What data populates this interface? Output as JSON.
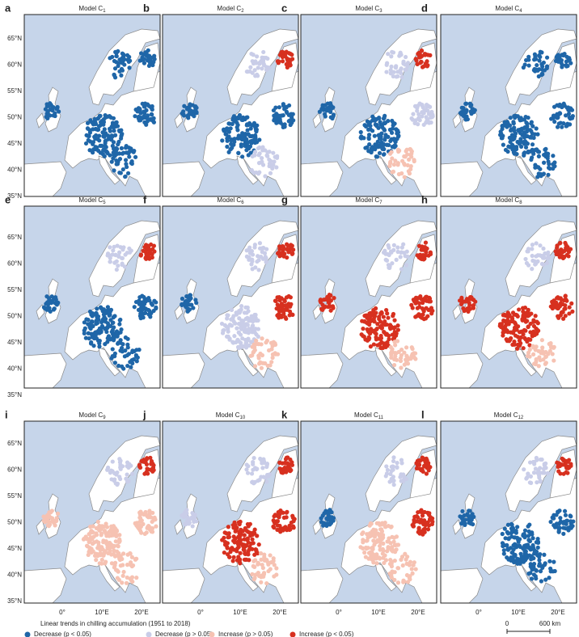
{
  "panels": [
    {
      "letter": "a",
      "title": "Model C",
      "subscript": "1"
    },
    {
      "letter": "b",
      "title": "Model C",
      "subscript": "2"
    },
    {
      "letter": "c",
      "title": "Model C",
      "subscript": "3"
    },
    {
      "letter": "d",
      "title": "Model C",
      "subscript": "4"
    },
    {
      "letter": "e",
      "title": "Model C",
      "subscript": "5"
    },
    {
      "letter": "f",
      "title": "Model C",
      "subscript": "6"
    },
    {
      "letter": "g",
      "title": "Model C",
      "subscript": "7"
    },
    {
      "letter": "h",
      "title": "Model C",
      "subscript": "8"
    },
    {
      "letter": "i",
      "title": "Model C",
      "subscript": "9"
    },
    {
      "letter": "j",
      "title": "Model C",
      "subscript": "10"
    },
    {
      "letter": "k",
      "title": "Model C",
      "subscript": "11"
    },
    {
      "letter": "l",
      "title": "Model C",
      "subscript": "12"
    }
  ],
  "lat_labels": [
    "65°N",
    "60°N",
    "55°N",
    "50°N",
    "45°N",
    "40°N",
    "35°N"
  ],
  "lon_labels": [
    "0°",
    "10°E",
    "20°E"
  ],
  "legend": {
    "title": "Linear trends in chilling accumulation (1951 to 2018)",
    "items": [
      {
        "label": "Decrease (p < 0.05)",
        "color": "#1f66a8"
      },
      {
        "label": "Decrease (p > 0.05)",
        "color": "#c9cde8"
      },
      {
        "label": "Increase (p > 0.05)",
        "color": "#f6c2b2"
      },
      {
        "label": "Increase (p < 0.05)",
        "color": "#d7301f"
      }
    ]
  },
  "scale_bar": {
    "start": "0",
    "end": "600 km"
  }
}
